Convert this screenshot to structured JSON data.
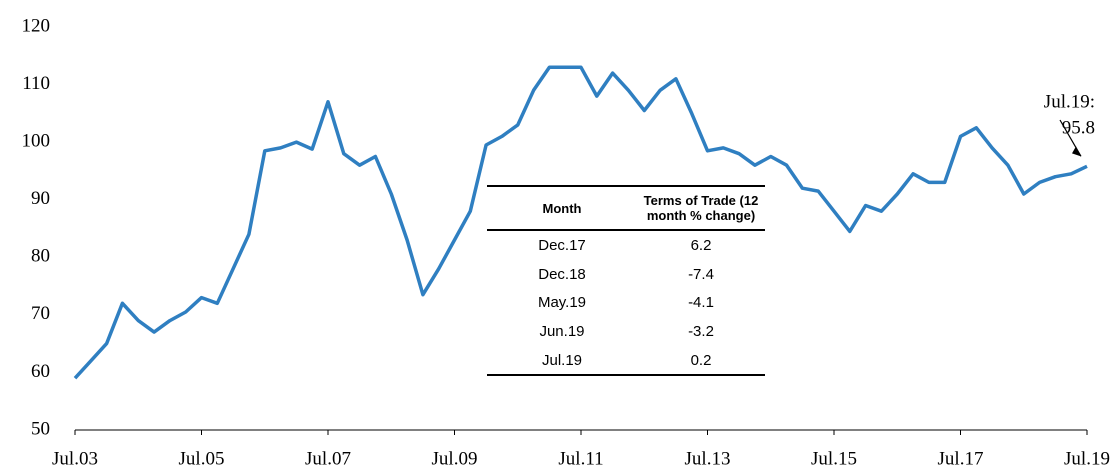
{
  "chart_data": {
    "type": "line",
    "categories": [
      "Jul.03",
      null,
      null,
      null,
      null,
      null,
      null,
      null,
      "Jul.05",
      null,
      null,
      null,
      null,
      null,
      null,
      null,
      "Jul.07",
      null,
      null,
      null,
      null,
      null,
      null,
      null,
      "Jul.09",
      null,
      null,
      null,
      null,
      null,
      null,
      null,
      "Jul.11",
      null,
      null,
      null,
      null,
      null,
      null,
      null,
      "Jul.13",
      null,
      null,
      null,
      null,
      null,
      null,
      null,
      "Jul.15",
      null,
      null,
      null,
      null,
      null,
      null,
      null,
      "Jul.17",
      null,
      null,
      null,
      null,
      null,
      null,
      null,
      "Jul.19"
    ],
    "series": [
      {
        "color": "#2f7fc1",
        "values": [
          59,
          62,
          65,
          72,
          69,
          67,
          69,
          70.5,
          73,
          72,
          78,
          84,
          98.5,
          99,
          100,
          98.8,
          107,
          98,
          96,
          97.5,
          91,
          83,
          73.5,
          78,
          83,
          88,
          99.5,
          101,
          103,
          109,
          113,
          113,
          113,
          108,
          112,
          109,
          105.5,
          109,
          111,
          105,
          98.5,
          99,
          98,
          96,
          97.5,
          96,
          92,
          91.5,
          88,
          84.5,
          89,
          88,
          91,
          94.5,
          93,
          93,
          101,
          102.5,
          99,
          96,
          91,
          93,
          94,
          94.5,
          95.8
        ]
      }
    ],
    "ylim": [
      50,
      120
    ],
    "yticks": [
      50,
      60,
      70,
      80,
      90,
      100,
      110,
      120
    ],
    "annotation": {
      "lines": [
        "Jul.19:",
        "95.8"
      ],
      "value": 95.8
    },
    "table": {
      "header": [
        "Month",
        "Terms of Trade (12 month % change)"
      ],
      "rows": [
        [
          "Dec.17",
          "6.2"
        ],
        [
          "Dec.18",
          "-7.4"
        ],
        [
          "May.19",
          "-4.1"
        ],
        [
          "Jun.19",
          "-3.2"
        ],
        [
          "Jul.19",
          "0.2"
        ]
      ]
    }
  }
}
